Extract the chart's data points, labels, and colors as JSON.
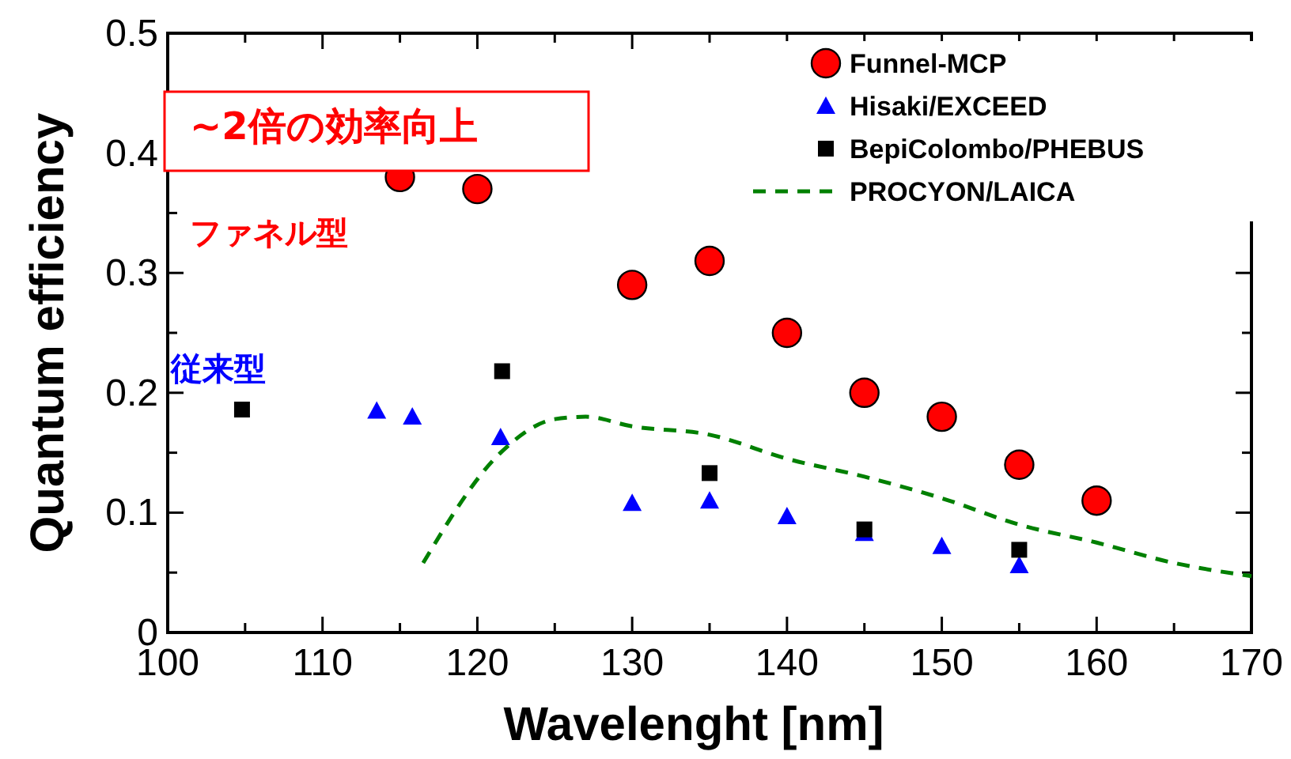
{
  "chart_data": {
    "type": "scatter",
    "xlabel": "Wavelenght [nm]",
    "ylabel": "Quantum efficiency",
    "xlim": [
      100,
      170
    ],
    "ylim": [
      0,
      0.5
    ],
    "xticks": [
      100,
      {
        "value": 105,
        "label": null
      },
      110,
      {
        "value": 115,
        "label": null
      },
      120,
      {
        "value": 125,
        "label": null
      },
      130,
      {
        "value": 135,
        "label": null
      },
      140,
      {
        "value": 145,
        "label": null
      },
      150,
      {
        "value": 155,
        "label": null
      },
      160,
      {
        "value": 165,
        "label": null
      },
      170
    ],
    "yticks": [
      0,
      {
        "value": 0.05,
        "label": null
      },
      0.1,
      {
        "value": 0.15,
        "label": null
      },
      0.2,
      {
        "value": 0.25,
        "label": null
      },
      0.3,
      {
        "value": 0.35,
        "label": null
      },
      0.4,
      {
        "value": 0.45,
        "label": null
      },
      0.5
    ],
    "legend": "top right",
    "grid": false,
    "annotations": [
      "~2倍の効率向上",
      "ファネル型",
      "従来型"
    ],
    "series": [
      {
        "name": "Funnel-MCP",
        "marker": "circle",
        "color": "#ff0000",
        "x": [
          115,
          120,
          130,
          135,
          140,
          145,
          150,
          155,
          160
        ],
        "values": [
          0.38,
          0.37,
          0.29,
          0.31,
          0.25,
          0.2,
          0.18,
          0.14,
          0.11
        ]
      },
      {
        "name": "Hisaki/EXCEED",
        "marker": "triangle",
        "color": "#0000ff",
        "x": [
          113.5,
          115.8,
          121.5,
          130,
          135,
          140,
          145,
          150,
          155
        ],
        "values": [
          0.185,
          0.18,
          0.163,
          0.108,
          0.11,
          0.097,
          0.083,
          0.072,
          0.056
        ]
      },
      {
        "name": "BepiColombo/PHEBUS",
        "marker": "square",
        "color": "#000000",
        "x": [
          104.8,
          121.6,
          135,
          145,
          155
        ],
        "values": [
          0.186,
          0.218,
          0.133,
          0.086,
          0.069
        ]
      },
      {
        "name": "PROCYON/LAICA",
        "type": "line",
        "marker": "none",
        "line_style": "dashed",
        "color": "#008000",
        "x": [
          116.5,
          121.5,
          125,
          127,
          130,
          135,
          140,
          145,
          150,
          155,
          160,
          165,
          170
        ],
        "values": [
          0.058,
          0.15,
          0.178,
          0.18,
          0.172,
          0.165,
          0.145,
          0.13,
          0.112,
          0.09,
          0.075,
          0.058,
          0.047
        ]
      }
    ]
  }
}
